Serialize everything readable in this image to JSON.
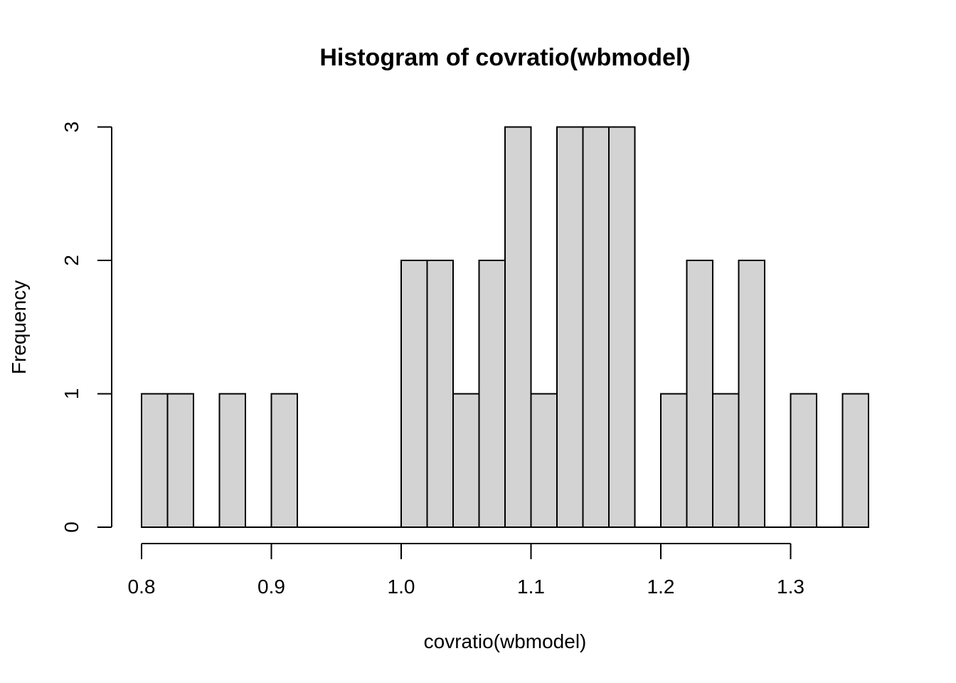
{
  "chart_data": {
    "type": "bar",
    "title": "Histogram of covratio(wbmodel)",
    "xlabel": "covratio(wbmodel)",
    "ylabel": "Frequency",
    "bin_width": 0.02,
    "bins": [
      {
        "start": 0.8,
        "end": 0.82,
        "count": 1
      },
      {
        "start": 0.82,
        "end": 0.84,
        "count": 1
      },
      {
        "start": 0.84,
        "end": 0.86,
        "count": 0
      },
      {
        "start": 0.86,
        "end": 0.88,
        "count": 1
      },
      {
        "start": 0.88,
        "end": 0.9,
        "count": 0
      },
      {
        "start": 0.9,
        "end": 0.92,
        "count": 1
      },
      {
        "start": 0.92,
        "end": 0.94,
        "count": 0
      },
      {
        "start": 0.94,
        "end": 0.96,
        "count": 0
      },
      {
        "start": 0.96,
        "end": 0.98,
        "count": 0
      },
      {
        "start": 0.98,
        "end": 1.0,
        "count": 0
      },
      {
        "start": 1.0,
        "end": 1.02,
        "count": 2
      },
      {
        "start": 1.02,
        "end": 1.04,
        "count": 2
      },
      {
        "start": 1.04,
        "end": 1.06,
        "count": 1
      },
      {
        "start": 1.06,
        "end": 1.08,
        "count": 2
      },
      {
        "start": 1.08,
        "end": 1.1,
        "count": 3
      },
      {
        "start": 1.1,
        "end": 1.12,
        "count": 1
      },
      {
        "start": 1.12,
        "end": 1.14,
        "count": 3
      },
      {
        "start": 1.14,
        "end": 1.16,
        "count": 3
      },
      {
        "start": 1.16,
        "end": 1.18,
        "count": 3
      },
      {
        "start": 1.18,
        "end": 1.2,
        "count": 0
      },
      {
        "start": 1.2,
        "end": 1.22,
        "count": 1
      },
      {
        "start": 1.22,
        "end": 1.24,
        "count": 2
      },
      {
        "start": 1.24,
        "end": 1.26,
        "count": 1
      },
      {
        "start": 1.26,
        "end": 1.28,
        "count": 2
      },
      {
        "start": 1.28,
        "end": 1.3,
        "count": 0
      },
      {
        "start": 1.3,
        "end": 1.32,
        "count": 1
      },
      {
        "start": 1.32,
        "end": 1.34,
        "count": 0
      },
      {
        "start": 1.34,
        "end": 1.36,
        "count": 1
      }
    ],
    "x_ticks": [
      0.8,
      0.9,
      1.0,
      1.1,
      1.2,
      1.3
    ],
    "x_tick_labels": [
      "0.8",
      "0.9",
      "1.0",
      "1.1",
      "1.2",
      "1.3"
    ],
    "y_ticks": [
      0,
      1,
      2,
      3
    ],
    "y_tick_labels": [
      "0",
      "1",
      "2",
      "3"
    ],
    "xlim": [
      0.8,
      1.36
    ],
    "ylim": [
      0,
      3
    ],
    "grid": false,
    "bar_fill": "#d3d3d3",
    "bar_stroke": "#000000"
  }
}
